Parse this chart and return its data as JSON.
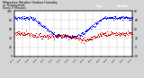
{
  "title_left": "Milwaukee Weather Outdoor Humidity",
  "title_right": "vs Temperature",
  "title_sub": "Every 5 Minutes",
  "bg_color": "#d4d4d4",
  "plot_bg": "#ffffff",
  "humidity_color": "#0000ff",
  "temp_color": "#cc0000",
  "legend_temp_color": "#ff0000",
  "legend_hum_color": "#0000ff",
  "ylim_left": [
    0,
    100
  ],
  "ylim_right": [
    -20,
    80
  ],
  "yticks_left": [
    0,
    20,
    40,
    60,
    80,
    100
  ],
  "yticks_right": [
    -20,
    0,
    20,
    40,
    60,
    80
  ],
  "marker_size": 0.5,
  "grid_color": "#aaaaaa",
  "n_points": 288
}
